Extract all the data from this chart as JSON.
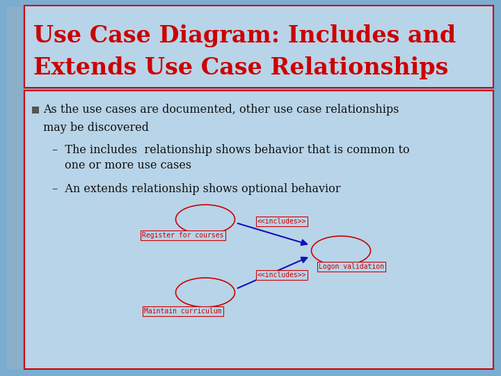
{
  "title_line1": "Use Case Diagram: Includes and",
  "title_line2": "Extends Use Case Relationships",
  "title_color": "#cc0000",
  "slide_bg": "#7badd1",
  "title_bg": "#b8d4e8",
  "content_bg": "#b8d4e8",
  "content_border": "#cc0000",
  "text_color": "#111111",
  "ellipse_color": "#cc0000",
  "arrow_color": "#1111bb",
  "label_color": "#cc0000",
  "bullet1": "As the use cases are documented, other use case relationships",
  "bullet1b": "may be discovered",
  "sub1a": "The includes  relationship shows behavior that is common to",
  "sub1b": "one or more use cases",
  "sub2": "An extends relationship shows optional behavior",
  "includes_label": "<<includes>>",
  "reg_label": "Register for courses",
  "logon_label": "Logon validation",
  "maintain_label": "Maintain curriculum"
}
